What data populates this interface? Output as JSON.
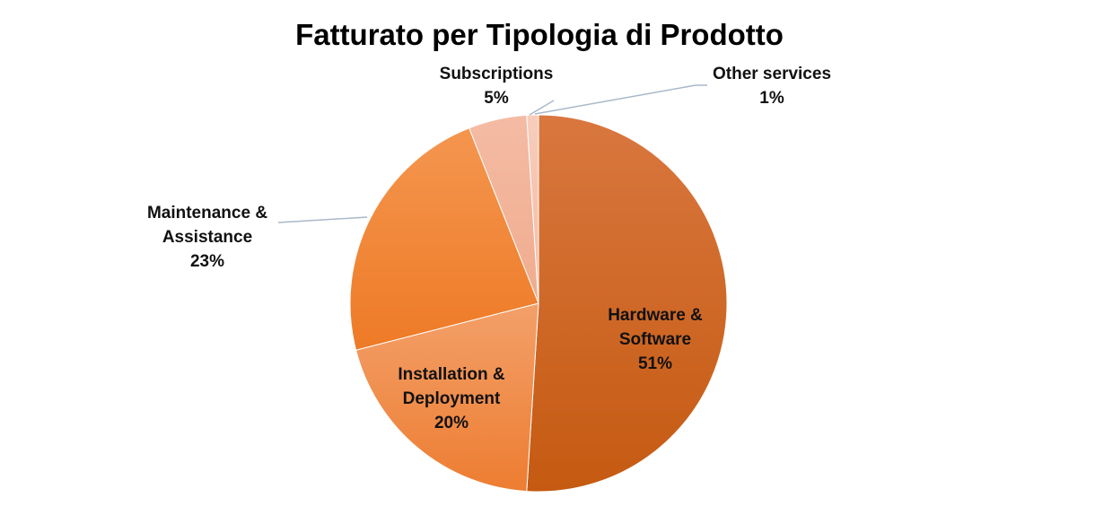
{
  "chart_data": {
    "type": "pie",
    "title": "Fatturato per Tipologia di Prodotto",
    "slices": [
      {
        "name": "Hardware & Software",
        "label_lines": [
          "Hardware &",
          "Software"
        ],
        "value": 51,
        "pct_label": "51%",
        "color": "#C55A11",
        "color_light": "#D9773F"
      },
      {
        "name": "Installation & Deployment",
        "label_lines": [
          "Installation &",
          "Deployment"
        ],
        "value": 20,
        "pct_label": "20%",
        "color": "#ED7D31",
        "color_light": "#F3A06A"
      },
      {
        "name": "Maintenance & Assistance",
        "label_lines": [
          "Maintenance &",
          "Assistance"
        ],
        "value": 23,
        "pct_label": "23%",
        "color": "#EE7A26",
        "color_light": "#F4964F"
      },
      {
        "name": "Subscriptions",
        "label_lines": [
          "Subscriptions"
        ],
        "value": 5,
        "pct_label": "5%",
        "color": "#F0AC8E",
        "color_light": "#F4BBA4"
      },
      {
        "name": "Other services",
        "label_lines": [
          "Other services"
        ],
        "value": 1,
        "pct_label": "1%",
        "color": "#F4BBA4",
        "color_light": "#F7CDBB"
      }
    ],
    "leader_line_color": "#A9B8C8"
  }
}
